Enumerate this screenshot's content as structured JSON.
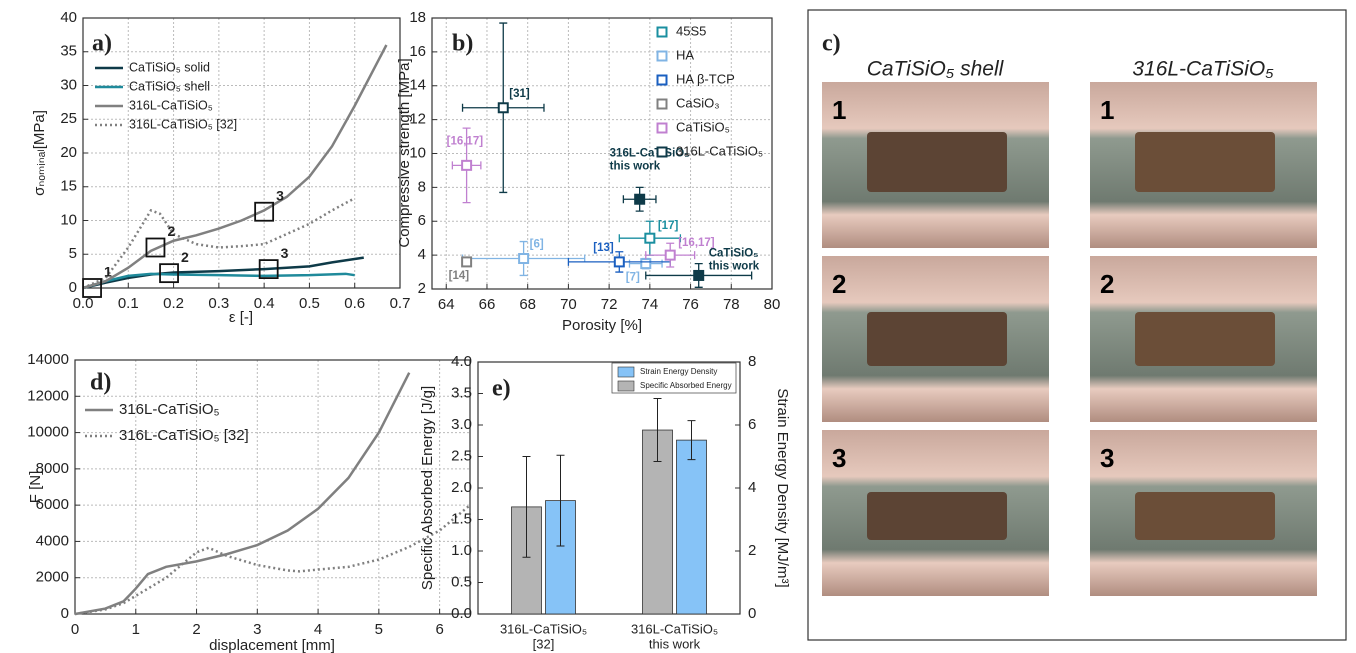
{
  "chart_data": [
    {
      "type": "line",
      "panel_label": "a)",
      "x_label": "ε [-]",
      "y_label": "σₙₒₘᵢₙₐₗ[MPa]",
      "xlim": [
        0,
        0.7
      ],
      "ylim": [
        0,
        40
      ],
      "xticks": [
        {
          "value": 0,
          "label": "0.0"
        },
        0.1,
        0.2,
        0.3,
        0.4,
        0.5,
        0.6,
        0.7
      ],
      "yticks": [
        0,
        5,
        10,
        15,
        20,
        25,
        30,
        35,
        40
      ],
      "grid": true,
      "series": [
        {
          "name": "CaTiSiO₅ solid",
          "color": "#0e3a48",
          "style": "solid",
          "x": [
            0,
            0.05,
            0.1,
            0.15,
            0.2,
            0.3,
            0.4,
            0.5,
            0.55,
            0.62
          ],
          "values": [
            0,
            0.8,
            1.5,
            2.0,
            2.3,
            2.5,
            2.8,
            3.2,
            3.8,
            4.5
          ]
        },
        {
          "name": "CaTiSiO₅ shell",
          "color": "#1f8a9b",
          "style": "solid",
          "x": [
            0,
            0.05,
            0.1,
            0.15,
            0.2,
            0.3,
            0.4,
            0.5,
            0.58,
            0.6
          ],
          "values": [
            0,
            1.0,
            1.8,
            2.1,
            2.0,
            1.9,
            1.8,
            1.9,
            2.1,
            1.9
          ]
        },
        {
          "name": "316L-CaTiSiO₅",
          "color": "#808080",
          "style": "solid",
          "x": [
            0,
            0.05,
            0.1,
            0.15,
            0.2,
            0.25,
            0.3,
            0.35,
            0.4,
            0.45,
            0.5,
            0.55,
            0.6,
            0.67
          ],
          "values": [
            0,
            1.0,
            3.0,
            5.5,
            7.0,
            7.8,
            8.8,
            10.0,
            11.5,
            13.5,
            16.5,
            21.0,
            27.0,
            36.0
          ]
        },
        {
          "name": "316L-CaTiSiO₅ [32]",
          "color": "#808080",
          "style": "dotted",
          "x": [
            0,
            0.05,
            0.1,
            0.15,
            0.17,
            0.2,
            0.25,
            0.3,
            0.35,
            0.4,
            0.45,
            0.5,
            0.55,
            0.6
          ],
          "values": [
            0,
            1.5,
            6.0,
            11.5,
            11.0,
            8.0,
            6.5,
            6.0,
            6.2,
            6.5,
            8.0,
            9.5,
            11.5,
            13.3
          ]
        }
      ],
      "annotations": [
        {
          "label": "1",
          "x": 0.02,
          "y": 0
        },
        {
          "label": "2",
          "x": 0.19,
          "y": 2.2
        },
        {
          "label": "2",
          "x": 0.16,
          "y": 6
        },
        {
          "label": "3",
          "x": 0.41,
          "y": 2.8
        },
        {
          "label": "3",
          "x": 0.4,
          "y": 11.3
        }
      ]
    },
    {
      "type": "scatter",
      "panel_label": "b)",
      "x_label": "Porosity [%]",
      "y_label": "Compressive strength [MPa]",
      "xlim": [
        63.3,
        80
      ],
      "ylim": [
        2,
        18
      ],
      "xticks": [
        64,
        66,
        68,
        70,
        72,
        74,
        76,
        78,
        80
      ],
      "yticks": [
        2,
        4,
        6,
        8,
        10,
        12,
        14,
        16,
        18
      ],
      "grid": true,
      "series": [
        {
          "name": "45S5",
          "color": "#1a8fa0",
          "x": [
            74
          ],
          "values": [
            5.0
          ],
          "xerr": [
            1.5
          ],
          "yerr": [
            1.0
          ],
          "filled": [
            false
          ],
          "labels": [
            [
              "[17]"
            ]
          ]
        },
        {
          "name": "HA",
          "color": "#80b4e4",
          "x": [
            67.8,
            73.8
          ],
          "values": [
            3.8,
            3.5
          ],
          "xerr": [
            3.0,
            0.8
          ],
          "yerr": [
            1.0,
            0.3
          ],
          "filled": [
            false,
            false
          ],
          "labels": [
            [
              "[6]"
            ],
            [
              "[7]"
            ]
          ]
        },
        {
          "name": "HA β-TCP",
          "color": "#1a5fc0",
          "x": [
            72.5
          ],
          "values": [
            3.6
          ],
          "xerr": [
            2.5
          ],
          "yerr": [
            0.6
          ],
          "filled": [
            false
          ],
          "labels": [
            [
              "[13]"
            ]
          ]
        },
        {
          "name": "CaSiO₃",
          "color": "#808080",
          "x": [
            65
          ],
          "values": [
            3.6
          ],
          "xerr": [
            null
          ],
          "yerr": [
            null
          ],
          "filled": [
            false
          ],
          "labels": [
            [
              "[14]"
            ]
          ]
        },
        {
          "name": "CaTiSiO₅",
          "color": "#c080d0",
          "x": [
            65,
            75
          ],
          "values": [
            9.3,
            4.0
          ],
          "xerr": [
            0.7,
            1.2
          ],
          "yerr": [
            2.2,
            0.7
          ],
          "filled": [
            false,
            false
          ],
          "labels": [
            [
              "[16,17]"
            ],
            [
              "[16,17]"
            ]
          ]
        },
        {
          "name": "316L-CaTiSiO₅",
          "color": "#0e3a48",
          "x": [
            66.8,
            73.5,
            76.4
          ],
          "values": [
            12.7,
            7.3,
            2.8
          ],
          "xerr": [
            2.0,
            0.8,
            2.6
          ],
          "yerr": [
            5.0,
            0.7,
            0.7
          ],
          "filled": [
            false,
            true,
            true
          ],
          "labels": [
            [
              "[31]"
            ],
            [
              "316L-CaTiSiO₅",
              "this work"
            ],
            [
              "CaTiSiO₅",
              "this work"
            ]
          ]
        }
      ]
    },
    {
      "type": "line",
      "panel_label": "d)",
      "x_label": "displacement [mm]",
      "y_label": "F [N]",
      "xlim": [
        0,
        6.5
      ],
      "ylim": [
        0,
        14000
      ],
      "xticks": [
        0,
        1,
        2,
        3,
        4,
        5,
        6
      ],
      "yticks": [
        0,
        2000,
        4000,
        6000,
        8000,
        10000,
        12000,
        14000
      ],
      "grid": true,
      "series": [
        {
          "name": "316L-CaTiSiO₅",
          "color": "#808080",
          "style": "solid",
          "x": [
            0,
            0.5,
            0.8,
            1.0,
            1.2,
            1.5,
            2.0,
            2.5,
            3.0,
            3.5,
            4.0,
            4.5,
            5.0,
            5.5
          ],
          "values": [
            0,
            300,
            700,
            1400,
            2200,
            2600,
            2900,
            3300,
            3800,
            4600,
            5800,
            7500,
            10000,
            13300
          ]
        },
        {
          "name": "316L-CaTiSiO₅ [32]",
          "color": "#808080",
          "style": "dotted",
          "x": [
            0,
            0.5,
            0.8,
            1.0,
            1.5,
            2.0,
            2.2,
            2.5,
            3.0,
            3.5,
            3.7,
            4.0,
            4.5,
            5.0,
            5.5,
            6.0,
            6.5
          ],
          "values": [
            0,
            250,
            600,
            1000,
            2000,
            3400,
            3650,
            3200,
            2700,
            2400,
            2350,
            2450,
            2600,
            3000,
            3700,
            4600,
            6000
          ]
        }
      ]
    },
    {
      "type": "bar",
      "panel_label": "e)",
      "y_label": "Specific Absorbed Energy [J/g]",
      "y2_label": "Strain Energy Density [MJ/m³]",
      "categories": [
        [
          "316L-CaTiSiO₅",
          "[32]"
        ],
        [
          "316L-CaTiSiO₅",
          "this work"
        ]
      ],
      "ylim": [
        0,
        4
      ],
      "y2lim": [
        0,
        8
      ],
      "yticks": [
        {
          "value": 0,
          "label": "0.0"
        },
        0.5,
        {
          "value": 1,
          "label": "1.0"
        },
        1.5,
        {
          "value": 2,
          "label": "2.0"
        },
        2.5,
        {
          "value": 3,
          "label": "3.0"
        },
        3.5,
        {
          "value": 4,
          "label": "4.0"
        }
      ],
      "y2ticks": [
        0,
        2,
        4,
        6,
        8
      ],
      "grid": false,
      "series": [
        {
          "name": "Specific Absorbed Energy",
          "color": "#b4b4b4",
          "values": [
            1.7,
            2.92
          ],
          "errors": [
            0.8,
            0.5
          ]
        },
        {
          "name": "Strain Energy Density",
          "color": "#86c3f7",
          "axis": "y2",
          "values": [
            3.6,
            5.52
          ],
          "errors": [
            1.44,
            0.62
          ]
        }
      ]
    }
  ],
  "photo_panel": {
    "label": "c)",
    "columns": [
      "CaTiSiO₅ shell",
      "316L-CaTiSiO₅"
    ],
    "rows": [
      "1",
      "2",
      "3"
    ]
  }
}
